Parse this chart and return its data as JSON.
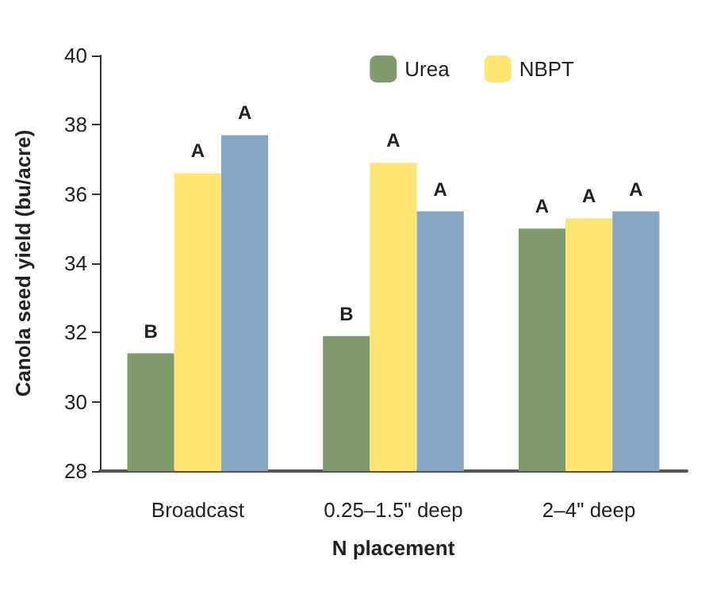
{
  "chart_data": {
    "type": "bar",
    "xlabel": "N placement",
    "ylabel": "Canola seed yield (bu/acre)",
    "categories": [
      "Broadcast",
      "0.25–1.5\" deep",
      "2–4\" deep"
    ],
    "series": [
      {
        "name": "Urea",
        "color": "#7f9a6c",
        "values": [
          31.4,
          31.9,
          35.0
        ],
        "value_labels": [
          "B",
          "B",
          "A"
        ]
      },
      {
        "name": "NBPT",
        "color": "#ffe571",
        "values": [
          36.6,
          36.9,
          35.3
        ],
        "value_labels": [
          "A",
          "A",
          "A"
        ]
      },
      {
        "color": "#87a6c4",
        "values": [
          37.7,
          35.5,
          35.5
        ],
        "value_labels": [
          "A",
          "A",
          "A"
        ]
      }
    ],
    "ylim": [
      28,
      40
    ],
    "yticks": [
      28,
      30,
      32,
      34,
      36,
      38,
      40
    ],
    "grid": false,
    "legend": "top right"
  }
}
